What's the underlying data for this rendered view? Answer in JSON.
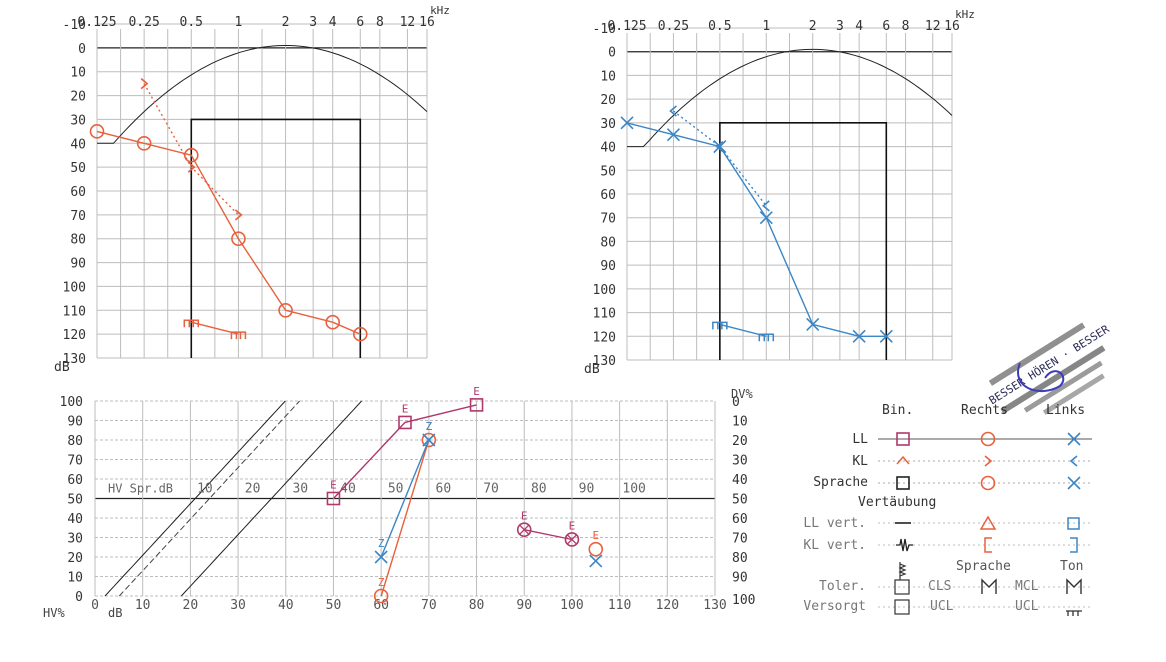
{
  "chart_data": [
    {
      "type": "line",
      "xlabel": "kHz",
      "ylabel": "dB",
      "x_ticks": [
        "0.125",
        "0.25",
        "0.5",
        "1",
        "2",
        "3",
        "4",
        "6",
        "8",
        "12",
        "16"
      ],
      "y_ticks": [
        -10,
        0,
        10,
        20,
        30,
        40,
        50,
        60,
        70,
        80,
        90,
        100,
        110,
        120,
        130
      ],
      "ylim": [
        -10,
        130
      ],
      "xscale": "log",
      "series": [
        {
          "name": "LL",
          "color": "#e8603c",
          "marker": "circle",
          "line": "solid",
          "x": [
            0.125,
            0.25,
            0.5,
            1,
            2,
            4,
            6
          ],
          "y": [
            35,
            40,
            45,
            80,
            110,
            115,
            120
          ]
        },
        {
          "name": "KL",
          "color": "#e8603c",
          "marker": "chevron",
          "line": "dotted",
          "x": [
            0.25,
            0.5,
            1
          ],
          "y": [
            15,
            50,
            70
          ]
        },
        {
          "name": "KL vert.",
          "color": "#e8603c",
          "marker": "bracket",
          "line": "solid",
          "x": [
            0.5,
            1
          ],
          "y": [
            115,
            120
          ]
        }
      ]
    },
    {
      "type": "line",
      "xlabel": "kHz",
      "ylabel": "dB",
      "x_ticks": [
        "0.125",
        "0.25",
        "0.5",
        "1",
        "2",
        "3",
        "4",
        "6",
        "8",
        "12",
        "16"
      ],
      "y_ticks": [
        -10,
        0,
        10,
        20,
        30,
        40,
        50,
        60,
        70,
        80,
        90,
        100,
        110,
        120,
        130
      ],
      "ylim": [
        -10,
        130
      ],
      "xscale": "log",
      "series": [
        {
          "name": "LL",
          "color": "#3b86c6",
          "marker": "x",
          "line": "solid",
          "x": [
            0.125,
            0.25,
            0.5,
            1,
            2,
            4,
            6
          ],
          "y": [
            30,
            35,
            40,
            70,
            115,
            120,
            120
          ]
        },
        {
          "name": "KL",
          "color": "#3b86c6",
          "marker": "chevron",
          "line": "dotted",
          "x": [
            0.25,
            0.5,
            1
          ],
          "y": [
            25,
            40,
            65
          ]
        },
        {
          "name": "KL vert.",
          "color": "#3b86c6",
          "marker": "bracket",
          "line": "solid",
          "x": [
            0.5,
            1
          ],
          "y": [
            115,
            120
          ]
        }
      ]
    },
    {
      "type": "line",
      "xlabel": "dB",
      "x_ticks": [
        0,
        10,
        20,
        30,
        40,
        50,
        60,
        70,
        80,
        90,
        100,
        110,
        120,
        130
      ],
      "y_ticks_left": [
        0,
        10,
        20,
        30,
        40,
        50,
        60,
        70,
        80,
        90,
        100
      ],
      "y_ticks_right": [
        100,
        90,
        80,
        70,
        60,
        50,
        40,
        30,
        20,
        10,
        0
      ],
      "left_label": "HV%",
      "right_label": "DV%",
      "hv_label": "HV Spr.dB",
      "hv_ticks": [
        0,
        10,
        20,
        30,
        40,
        50,
        60,
        70,
        80,
        90,
        100
      ],
      "xlim": [
        0,
        130
      ],
      "ylim": [
        0,
        100
      ],
      "series": [
        {
          "name": "Bin.",
          "color": "#b0386a",
          "marker": "square",
          "letter": "E",
          "x": [
            50,
            65,
            80
          ],
          "y": [
            50,
            89,
            98
          ]
        },
        {
          "name": "Rechts",
          "color": "#e8603c",
          "marker": "circle",
          "letter": "Z",
          "x": [
            60,
            70
          ],
          "y": [
            0,
            80
          ]
        },
        {
          "name": "Links",
          "color": "#3b86c6",
          "marker": "x",
          "letter": "Z",
          "x": [
            60,
            70
          ],
          "y": [
            20,
            80
          ]
        },
        {
          "name": "Rechts DV",
          "color": "#b0386a",
          "marker": "circlex",
          "letter": "E",
          "x": [
            90,
            100
          ],
          "y": [
            34,
            29
          ]
        },
        {
          "name": "Rechts DV CLS",
          "color": "#e8603c",
          "marker": "circle",
          "letter": "E",
          "x": [
            105
          ],
          "y": [
            24
          ]
        },
        {
          "name": "Links DV",
          "color": "#3b86c6",
          "marker": "x",
          "letter": "",
          "x": [
            105
          ],
          "y": [
            18
          ]
        }
      ]
    }
  ],
  "legend": {
    "headers": {
      "bin": "Bin.",
      "rechts": "Rechts",
      "links": "Links"
    },
    "rows": [
      "LL",
      "KL",
      "Sprache"
    ],
    "vert_title": "Vertäubung",
    "vert_rows": [
      "LL vert.",
      "KL vert."
    ],
    "sub_headers": {
      "sprache": "Sprache",
      "ton": "Ton"
    },
    "toler": "Toler.",
    "versorgt": "Versorgt",
    "cls": "CLS",
    "mcl": "MCL",
    "ucl": "UCL"
  },
  "stamp": {
    "text": "BESSER HÖREN · BESSER"
  },
  "colors": {
    "right": "#e8603c",
    "left": "#3b86c6",
    "binaural": "#b0386a",
    "grid": "#bdbdbd",
    "axis": "#222222"
  }
}
